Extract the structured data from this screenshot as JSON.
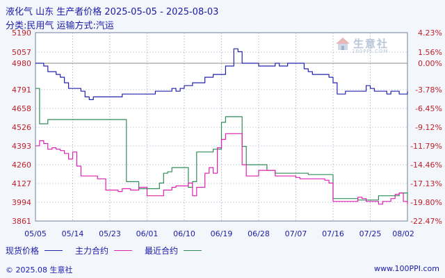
{
  "header": {
    "title": "液化气 山东 生产者价格 2025-05-05 - 2025-08-03",
    "subtitle": "分类:民用气 运输方式:汽运"
  },
  "watermark": {
    "name": "生意社",
    "url": "100PPI.COM"
  },
  "legend": {
    "items": [
      {
        "label": "现货价格",
        "color": "#2222aa"
      },
      {
        "label": "主力合约",
        "color": "#e020b0"
      },
      {
        "label": "最近合约",
        "color": "#2e8b57"
      }
    ]
  },
  "footer": {
    "copyright": "© 2025.08 生意社",
    "website": "www.100PPI.com"
  },
  "colors": {
    "spot": "#2222aa",
    "main": "#e020b0",
    "recent": "#2e8b57",
    "left_axis": "#c0202a",
    "right_axis": "#c0202a",
    "grid": "#9aa8c0",
    "zero_line": "#888888"
  },
  "chart_data": {
    "type": "line",
    "x_start": "05/05",
    "x_end": "08/03",
    "x_tick_labels": [
      "05/05",
      "05/14",
      "05/23",
      "06/01",
      "06/10",
      "06/19",
      "06/28",
      "07/07",
      "07/16",
      "07/25",
      "08/02"
    ],
    "y_left_ticks": [
      "5190",
      "5057",
      "4980",
      "4791",
      "4658",
      "4526",
      "4393",
      "4260",
      "4127",
      "3994",
      "3861"
    ],
    "y_right_ticks": [
      "4.23%",
      "1.56%",
      "0.00%",
      "-3.78%",
      "-6.45%",
      "-9.12%",
      "-11.79%",
      "-14.46%",
      "-17.13%",
      "-19.80%",
      "-22.47%"
    ],
    "ylim": [
      3861,
      5190
    ],
    "reference_value": 4980,
    "grid": true,
    "series": [
      {
        "name": "现货价格",
        "x": [
          "05/05",
          "05/07",
          "05/08",
          "05/10",
          "05/11",
          "05/12",
          "05/13",
          "05/14",
          "05/16",
          "05/17",
          "05/18",
          "05/19",
          "05/20",
          "05/22",
          "05/24",
          "05/25",
          "05/26",
          "05/27",
          "05/30",
          "06/02",
          "06/03",
          "06/05",
          "06/06",
          "06/07",
          "06/08",
          "06/09",
          "06/10",
          "06/11",
          "06/12",
          "06/13",
          "06/15",
          "06/16",
          "06/17",
          "06/18",
          "06/19",
          "06/20",
          "06/22",
          "06/23",
          "06/24",
          "06/25",
          "06/27",
          "06/28",
          "06/29",
          "06/30",
          "07/02",
          "07/03",
          "07/05",
          "07/06",
          "07/07",
          "07/09",
          "07/10",
          "07/11",
          "07/13",
          "07/14",
          "07/15",
          "07/16",
          "07/17",
          "07/19",
          "07/20",
          "07/21",
          "07/22",
          "07/23",
          "07/24",
          "07/25",
          "07/26",
          "07/27",
          "07/29",
          "07/30",
          "07/31",
          "08/01",
          "08/02",
          "08/03"
        ],
        "y": [
          4980,
          4960,
          4920,
          4900,
          4880,
          4840,
          4800,
          4800,
          4780,
          4740,
          4720,
          4740,
          4740,
          4740,
          4740,
          4740,
          4760,
          4760,
          4760,
          4760,
          4780,
          4780,
          4780,
          4800,
          4780,
          4800,
          4820,
          4820,
          4840,
          4840,
          4880,
          4880,
          4900,
          4900,
          4900,
          4960,
          5080,
          5060,
          4980,
          4980,
          4980,
          4960,
          4960,
          4960,
          4980,
          4960,
          4980,
          4980,
          4980,
          4940,
          4920,
          4900,
          4900,
          4900,
          4880,
          4840,
          4760,
          4780,
          4780,
          4780,
          4780,
          4780,
          4820,
          4800,
          4780,
          4780,
          4760,
          4780,
          4780,
          4760,
          4760,
          4780
        ]
      },
      {
        "name": "主力合约",
        "x": [
          "05/05",
          "05/06",
          "05/07",
          "05/08",
          "05/09",
          "05/10",
          "05/11",
          "05/12",
          "05/13",
          "05/14",
          "05/15",
          "05/16",
          "05/17",
          "05/19",
          "05/20",
          "05/22",
          "05/24",
          "05/25",
          "05/26",
          "05/28",
          "05/30",
          "06/01",
          "06/02",
          "06/03",
          "06/04",
          "06/05",
          "06/06",
          "06/07",
          "06/08",
          "06/09",
          "06/10",
          "06/11",
          "06/12",
          "06/13",
          "06/14",
          "06/15",
          "06/16",
          "06/17",
          "06/18",
          "06/19",
          "06/20",
          "06/23",
          "06/24",
          "06/25",
          "06/26",
          "06/27",
          "06/28",
          "06/30",
          "07/02",
          "07/04",
          "07/07",
          "07/08",
          "07/10",
          "07/12",
          "07/14",
          "07/15",
          "07/16",
          "07/17",
          "07/20",
          "07/21",
          "07/22",
          "07/23",
          "07/24",
          "07/25",
          "07/26",
          "07/27",
          "07/28",
          "07/30",
          "07/31",
          "08/01",
          "08/02",
          "08/03"
        ],
        "y": [
          4394,
          4430,
          4410,
          4370,
          4380,
          4370,
          4360,
          4340,
          4300,
          4350,
          4250,
          4180,
          4180,
          4180,
          4160,
          4080,
          4080,
          4070,
          4090,
          4080,
          4100,
          4040,
          4040,
          4040,
          4040,
          4080,
          4080,
          4100,
          4110,
          4110,
          4110,
          4130,
          4040,
          4100,
          4100,
          4200,
          4240,
          4200,
          4380,
          4440,
          4480,
          4480,
          4260,
          4180,
          4180,
          4180,
          4220,
          4220,
          4180,
          4180,
          4170,
          4160,
          4160,
          4160,
          4150,
          4130,
          4000,
          4000,
          4000,
          4000,
          4030,
          4020,
          4000,
          4000,
          4000,
          3980,
          4000,
          4020,
          4050,
          4060,
          4000,
          3980
        ]
      },
      {
        "name": "最近合约",
        "x": [
          "05/05",
          "05/06",
          "05/07",
          "05/08",
          "05/10",
          "05/14",
          "05/17",
          "05/20",
          "05/23",
          "05/25",
          "05/26",
          "05/27",
          "05/28",
          "05/30",
          "06/01",
          "06/02",
          "06/03",
          "06/04",
          "06/05",
          "06/06",
          "06/07",
          "06/08",
          "06/09",
          "06/10",
          "06/11",
          "06/12",
          "06/13",
          "06/14",
          "06/15",
          "06/16",
          "06/17",
          "06/18",
          "06/19",
          "06/20",
          "06/22",
          "06/23",
          "06/24",
          "06/25",
          "06/26",
          "06/28",
          "06/30",
          "07/02",
          "07/04",
          "07/05",
          "07/07",
          "07/10",
          "07/13",
          "07/15",
          "07/16",
          "07/17",
          "07/20",
          "07/22",
          "07/25",
          "07/27",
          "07/30",
          "08/01",
          "08/02",
          "08/03"
        ],
        "y": [
          4800,
          4550,
          4550,
          4580,
          4580,
          4580,
          4580,
          4580,
          4580,
          4580,
          4580,
          4140,
          4140,
          4090,
          4090,
          4090,
          4090,
          4130,
          4200,
          4210,
          4240,
          4240,
          4240,
          4240,
          4100,
          4140,
          4350,
          4350,
          4350,
          4350,
          4370,
          4370,
          4560,
          4600,
          4600,
          4600,
          4390,
          4260,
          4260,
          4260,
          4220,
          4200,
          4200,
          4200,
          4200,
          4190,
          4190,
          4190,
          4020,
          4020,
          4020,
          4010,
          4010,
          4040,
          4040,
          4060,
          4060,
          4000
        ]
      }
    ]
  }
}
